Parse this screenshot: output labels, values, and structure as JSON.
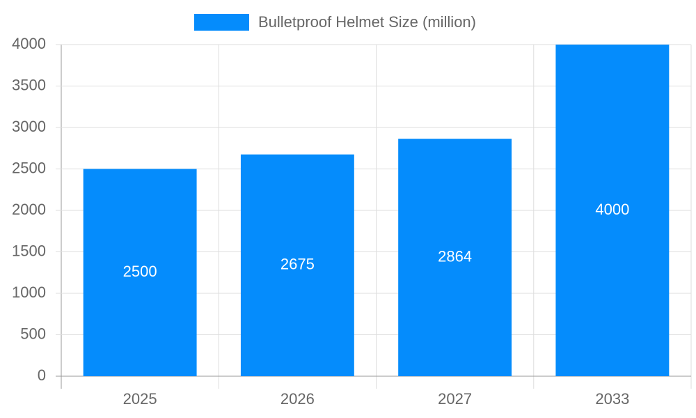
{
  "chart_data": {
    "type": "bar",
    "categories": [
      "2025",
      "2026",
      "2027",
      "2033"
    ],
    "series": [
      {
        "name": "Bulletproof Helmet Size (million)",
        "color": "#058cfc",
        "values": [
          2500,
          2675,
          2864,
          4000
        ]
      }
    ],
    "ylim": [
      0,
      4000
    ],
    "yticks": [
      0,
      500,
      1000,
      1500,
      2000,
      2500,
      3000,
      3500,
      4000
    ],
    "grid": true,
    "legend": "top",
    "data_labels": true
  }
}
